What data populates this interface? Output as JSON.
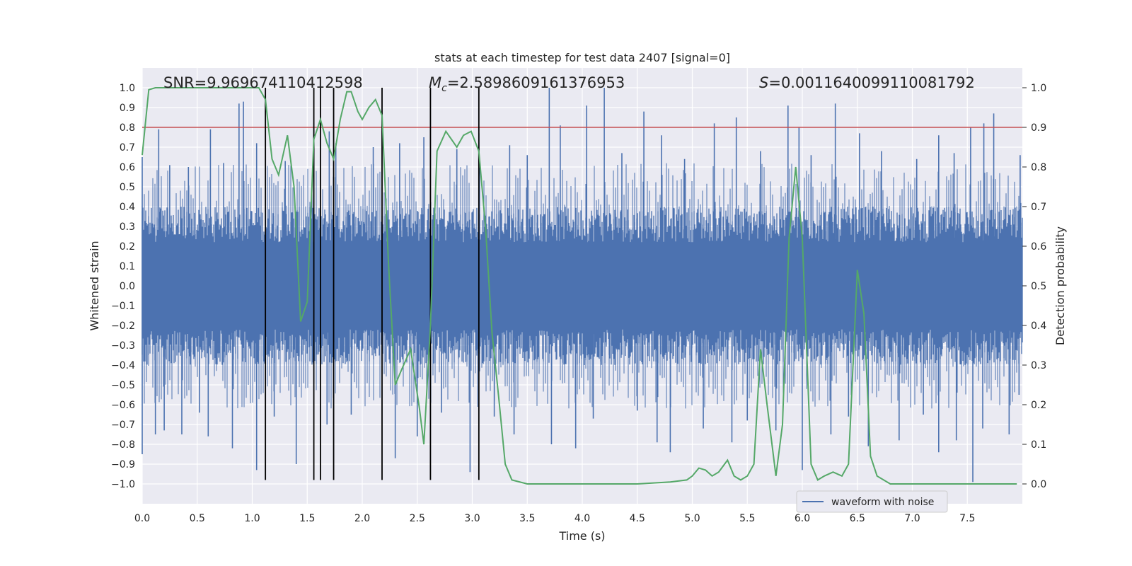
{
  "chart_data": {
    "type": "line",
    "title": "stats at each timestep for test data 2407 [signal=0]",
    "xlabel": "Time (s)",
    "ylabel": "Whitened strain",
    "y2label": "Detection probability",
    "xlim": [
      0.0,
      8.0
    ],
    "ylim": [
      -1.1,
      1.1
    ],
    "y2lim": [
      -0.05,
      1.05
    ],
    "grid": true,
    "legend_position": "lower-right",
    "x_ticks": [
      "0.0",
      "0.5",
      "1.0",
      "1.5",
      "2.0",
      "2.5",
      "3.0",
      "3.5",
      "4.0",
      "4.5",
      "5.0",
      "5.5",
      "6.0",
      "6.5",
      "7.0",
      "7.5"
    ],
    "y_ticks": [
      "1.0",
      "0.9",
      "0.8",
      "0.7",
      "0.6",
      "0.5",
      "0.4",
      "0.3",
      "0.2",
      "0.1",
      "0.0",
      "−0.1",
      "−0.2",
      "−0.3",
      "−0.4",
      "−0.5",
      "−0.6",
      "−0.7",
      "−0.8",
      "−0.9",
      "−1.0"
    ],
    "y2_ticks": [
      "1.0",
      "0.9",
      "0.8",
      "0.7",
      "0.6",
      "0.5",
      "0.4",
      "0.3",
      "0.2",
      "0.1",
      "0.0"
    ],
    "annotations": {
      "snr": "SNR=9.969674110412598",
      "mc_symbol": "M",
      "mc_sub": "c",
      "mc_value": "=2.5898609161376953",
      "s_symbol": "S",
      "s_value": "=0.0011640099110081792"
    },
    "threshold": {
      "y2": 0.9,
      "color": "#c44e52"
    },
    "vertical_lines": [
      1.12,
      1.56,
      1.62,
      1.74,
      2.18,
      2.62,
      3.06
    ],
    "vertical_lines_y_range": [
      -0.98,
      1.0
    ],
    "waveform": {
      "name": "waveform with noise",
      "color": "#4c72b0",
      "core_envelope": 0.4,
      "spikes": [
        [
          0.0,
          0.65
        ],
        [
          0.15,
          0.79
        ],
        [
          0.62,
          0.79
        ],
        [
          0.88,
          0.92
        ],
        [
          0.92,
          0.93
        ],
        [
          1.04,
          0.72
        ],
        [
          1.56,
          0.82
        ],
        [
          1.7,
          0.78
        ],
        [
          1.76,
          0.72
        ],
        [
          2.34,
          0.72
        ],
        [
          2.56,
          0.75
        ],
        [
          3.06,
          0.77
        ],
        [
          3.34,
          0.71
        ],
        [
          3.7,
          1.0
        ],
        [
          3.8,
          0.81
        ],
        [
          4.04,
          0.91
        ],
        [
          4.2,
          1.0
        ],
        [
          4.56,
          0.88
        ],
        [
          4.72,
          0.76
        ],
        [
          5.2,
          0.82
        ],
        [
          5.4,
          0.85
        ],
        [
          5.87,
          0.91
        ],
        [
          5.97,
          0.8
        ],
        [
          6.3,
          0.92
        ],
        [
          6.52,
          0.77
        ],
        [
          7.24,
          0.76
        ],
        [
          7.53,
          0.8
        ],
        [
          7.65,
          0.82
        ],
        [
          7.74,
          0.87
        ],
        [
          7.98,
          0.66
        ],
        [
          0.25,
          0.61
        ],
        [
          0.42,
          0.6
        ],
        [
          0.74,
          0.62
        ],
        [
          1.3,
          0.63
        ],
        [
          2.1,
          0.7
        ],
        [
          2.86,
          0.69
        ],
        [
          3.5,
          0.66
        ],
        [
          4.36,
          0.67
        ],
        [
          4.93,
          0.64
        ],
        [
          5.62,
          0.68
        ],
        [
          6.08,
          0.66
        ],
        [
          6.72,
          0.68
        ],
        [
          7.04,
          0.64
        ],
        [
          7.38,
          0.67
        ],
        [
          0.0,
          -0.85
        ],
        [
          0.12,
          -0.75
        ],
        [
          0.2,
          -0.73
        ],
        [
          0.36,
          -0.75
        ],
        [
          0.6,
          -0.76
        ],
        [
          0.82,
          -0.82
        ],
        [
          1.04,
          -0.93
        ],
        [
          1.4,
          -0.9
        ],
        [
          1.68,
          -0.7
        ],
        [
          2.3,
          -0.87
        ],
        [
          2.5,
          -0.76
        ],
        [
          2.98,
          -0.94
        ],
        [
          3.38,
          -0.75
        ],
        [
          3.72,
          -0.8
        ],
        [
          3.94,
          -0.82
        ],
        [
          4.68,
          -0.79
        ],
        [
          4.8,
          -0.84
        ],
        [
          5.1,
          -0.72
        ],
        [
          5.36,
          -0.79
        ],
        [
          5.76,
          -0.73
        ],
        [
          6.0,
          -0.93
        ],
        [
          6.26,
          -0.75
        ],
        [
          6.6,
          -0.81
        ],
        [
          6.88,
          -0.78
        ],
        [
          7.24,
          -0.84
        ],
        [
          7.4,
          -0.78
        ],
        [
          7.55,
          -0.99
        ],
        [
          7.64,
          -0.72
        ],
        [
          7.88,
          -0.75
        ],
        [
          0.52,
          -0.64
        ],
        [
          1.2,
          -0.66
        ],
        [
          1.9,
          -0.65
        ],
        [
          2.72,
          -0.64
        ],
        [
          3.2,
          -0.66
        ],
        [
          4.1,
          -0.67
        ],
        [
          4.5,
          -0.63
        ],
        [
          5.5,
          -0.68
        ],
        [
          6.42,
          -0.66
        ],
        [
          7.1,
          -0.65
        ],
        [
          7.97,
          -0.55
        ]
      ]
    },
    "detection_probability": {
      "color": "#55a868",
      "x": [
        0.0,
        0.06,
        0.12,
        0.3,
        0.6,
        0.9,
        1.06,
        1.12,
        1.18,
        1.24,
        1.32,
        1.38,
        1.44,
        1.5,
        1.56,
        1.62,
        1.68,
        1.74,
        1.8,
        1.86,
        1.9,
        1.96,
        2.0,
        2.06,
        2.12,
        2.18,
        2.24,
        2.3,
        2.36,
        2.44,
        2.52,
        2.56,
        2.62,
        2.68,
        2.76,
        2.86,
        2.92,
        2.99,
        3.06,
        3.12,
        3.18,
        3.24,
        3.3,
        3.36,
        3.5,
        4.0,
        4.5,
        4.8,
        4.95,
        5.0,
        5.06,
        5.12,
        5.18,
        5.24,
        5.32,
        5.38,
        5.44,
        5.5,
        5.56,
        5.62,
        5.68,
        5.76,
        5.82,
        5.88,
        5.94,
        6.0,
        6.08,
        6.14,
        6.2,
        6.28,
        6.36,
        6.42,
        6.5,
        6.56,
        6.62,
        6.68,
        6.8,
        7.0,
        7.6,
        7.95
      ],
      "y": [
        0.83,
        0.995,
        1.0,
        1.0,
        1.0,
        1.0,
        1.0,
        0.97,
        0.82,
        0.78,
        0.88,
        0.75,
        0.41,
        0.46,
        0.87,
        0.92,
        0.86,
        0.82,
        0.92,
        0.99,
        0.99,
        0.94,
        0.92,
        0.95,
        0.97,
        0.93,
        0.55,
        0.25,
        0.29,
        0.34,
        0.19,
        0.1,
        0.4,
        0.84,
        0.89,
        0.85,
        0.88,
        0.89,
        0.84,
        0.65,
        0.38,
        0.22,
        0.05,
        0.01,
        0.0,
        0.0,
        0.0,
        0.005,
        0.01,
        0.02,
        0.04,
        0.035,
        0.02,
        0.03,
        0.06,
        0.02,
        0.01,
        0.02,
        0.05,
        0.34,
        0.2,
        0.02,
        0.15,
        0.62,
        0.8,
        0.62,
        0.05,
        0.01,
        0.02,
        0.03,
        0.02,
        0.05,
        0.54,
        0.43,
        0.07,
        0.02,
        0.0,
        0.0,
        0.0,
        0.0
      ]
    }
  }
}
